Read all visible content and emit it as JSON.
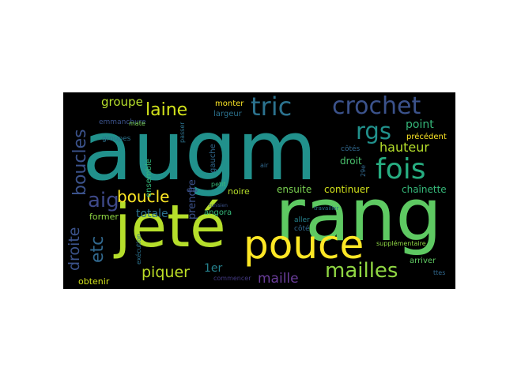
{
  "palette": [
    "#440154",
    "#472c7a",
    "#3b528b",
    "#2c728e",
    "#21908d",
    "#27ad81",
    "#5cc863",
    "#aadc32",
    "#fde725"
  ],
  "background": "#000000",
  "words": [
    {
      "text": "augm",
      "color": "#21918c"
    },
    {
      "text": "rang",
      "color": "#5ec962"
    },
    {
      "text": "jeté",
      "color": "#b5de2b"
    },
    {
      "text": "pouce",
      "color": "#fde725"
    },
    {
      "text": "crochet",
      "color": "#3b528b"
    },
    {
      "text": "tric",
      "color": "#2c728e"
    },
    {
      "text": "fois",
      "color": "#27ad81"
    },
    {
      "text": "rgs",
      "color": "#21918c"
    },
    {
      "text": "mailles",
      "color": "#90d743"
    },
    {
      "text": "laine",
      "color": "#d2e21b"
    },
    {
      "text": "boucles",
      "color": "#3b528b"
    },
    {
      "text": "aig",
      "color": "#3e4989"
    },
    {
      "text": "boucle",
      "color": "#fde725"
    },
    {
      "text": "groupe",
      "color": "#b5de2b"
    },
    {
      "text": "hauteur",
      "color": "#b5de2b"
    },
    {
      "text": "point",
      "color": "#35b779"
    },
    {
      "text": "maille",
      "color": "#6a3d9a"
    },
    {
      "text": "piquer",
      "color": "#bddf26"
    },
    {
      "text": "droite",
      "color": "#3b528b"
    },
    {
      "text": "etc",
      "color": "#31688e"
    },
    {
      "text": "totale",
      "color": "#2c728e"
    },
    {
      "text": "chaînette",
      "color": "#35b779"
    },
    {
      "text": "continuer",
      "color": "#d2e21b"
    },
    {
      "text": "obtenir",
      "color": "#d2e21b"
    },
    {
      "text": "former",
      "color": "#8fd744"
    },
    {
      "text": "1er",
      "color": "#26828e"
    },
    {
      "text": "prendre",
      "color": "#3b528b"
    },
    {
      "text": "ensuite",
      "color": "#7ad151"
    },
    {
      "text": "droit",
      "color": "#4ac16d"
    },
    {
      "text": "noire",
      "color": "#b5de2b"
    },
    {
      "text": "angora",
      "color": "#35b779"
    },
    {
      "text": "ensemble",
      "color": "#35b779"
    },
    {
      "text": "gauche",
      "color": "#31688e"
    },
    {
      "text": "largeur",
      "color": "#2c728e"
    },
    {
      "text": "monter",
      "color": "#fde725"
    },
    {
      "text": "emmanchure",
      "color": "#3b528b"
    },
    {
      "text": "groupes",
      "color": "#2c728e"
    },
    {
      "text": "mate",
      "color": "#7ad151"
    },
    {
      "text": "précédent",
      "color": "#fde725"
    },
    {
      "text": "arriver",
      "color": "#5ec962"
    },
    {
      "text": "côtés",
      "color": "#31688e"
    },
    {
      "text": "aller",
      "color": "#26828e"
    },
    {
      "text": "côté",
      "color": "#31688e"
    },
    {
      "text": "supplémentaire",
      "color": "#8fd744"
    },
    {
      "text": "exécution",
      "color": "#2c728e"
    },
    {
      "text": "passer",
      "color": "#2c728e"
    },
    {
      "text": "petit",
      "color": "#35b779"
    },
    {
      "text": "env",
      "color": "#3b528b"
    },
    {
      "text": "air",
      "color": "#31688e"
    },
    {
      "text": "commencer",
      "color": "#443a83"
    },
    {
      "text": "travailler",
      "color": "#2c728e"
    },
    {
      "text": "tunisien",
      "color": "#3b528b"
    },
    {
      "text": "29e",
      "color": "#31688e"
    },
    {
      "text": "ttes",
      "color": "#31688e"
    }
  ]
}
